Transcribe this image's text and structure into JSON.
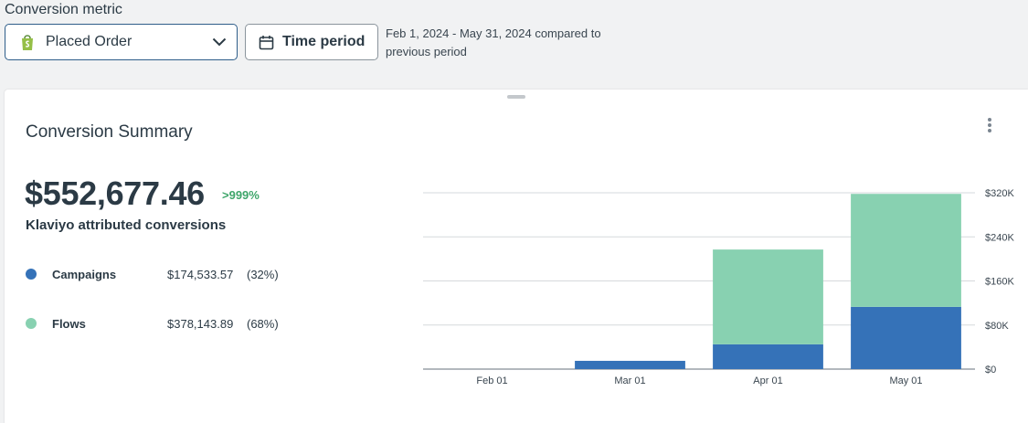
{
  "header": {
    "metric_label": "Conversion metric",
    "metric_value": "Placed Order",
    "time_button_label": "Time period",
    "date_range": "Feb 1, 2024 - May 31, 2024 compared to previous period"
  },
  "card": {
    "title": "Conversion Summary",
    "total": "$552,677.46",
    "delta": ">999%",
    "subtitle": "Klaviyo attributed conversions",
    "legend": [
      {
        "name": "Campaigns",
        "value": "$174,533.57",
        "pct": "(32%)",
        "color": "#3572b8"
      },
      {
        "name": "Flows",
        "value": "$378,143.89",
        "pct": "(68%)",
        "color": "#88d1b1"
      }
    ]
  },
  "icons": {
    "metric": "shopify-bag-icon",
    "dropdown": "chevron-down-icon",
    "time": "calendar-icon",
    "menu": "kebab-menu-icon"
  },
  "chart_data": {
    "type": "bar",
    "stacked": true,
    "categories": [
      "Feb 01",
      "Mar 01",
      "Apr 01",
      "May 01"
    ],
    "series": [
      {
        "name": "Campaigns",
        "color": "#3572b8",
        "values": [
          0,
          15000,
          45000,
          113000
        ]
      },
      {
        "name": "Flows",
        "color": "#88d1b1",
        "values": [
          0,
          0,
          172000,
          205000
        ]
      }
    ],
    "y_ticks": [
      "$0",
      "$80K",
      "$160K",
      "$240K",
      "$320K"
    ],
    "ylim": [
      0,
      320000
    ],
    "y_axis_side": "right",
    "grid": true
  }
}
